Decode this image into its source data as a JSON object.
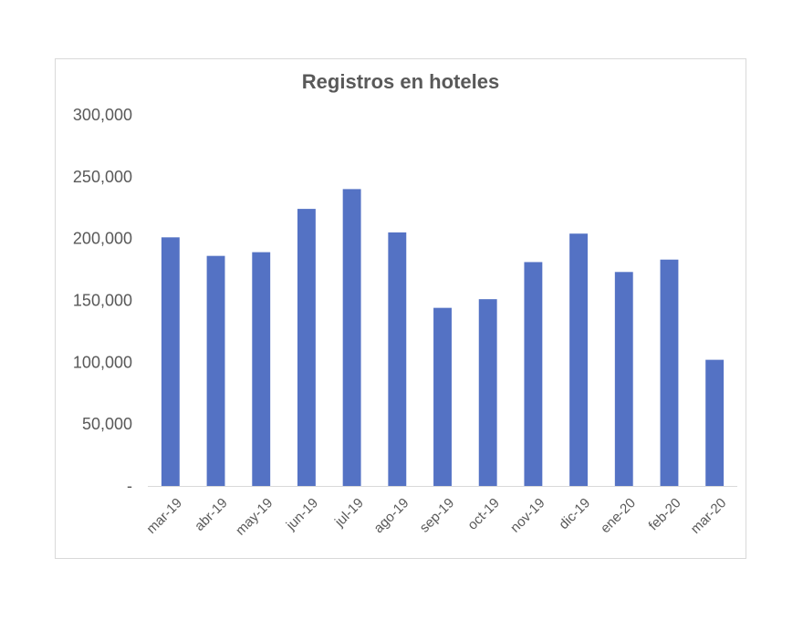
{
  "chart_data": {
    "type": "bar",
    "title": "Registros en hoteles",
    "xlabel": "",
    "ylabel": "",
    "categories": [
      "mar-19",
      "abr-19",
      "may-19",
      "jun-19",
      "jul-19",
      "ago-19",
      "sep-19",
      "oct-19",
      "nov-19",
      "dic-19",
      "ene-20",
      "feb-20",
      "mar-20"
    ],
    "values": [
      201000,
      186000,
      189000,
      224000,
      240000,
      205000,
      144000,
      151000,
      181000,
      204000,
      173000,
      183000,
      102000
    ],
    "ylim": [
      0,
      300000
    ],
    "yticks": [
      0,
      50000,
      100000,
      150000,
      200000,
      250000,
      300000
    ],
    "ytick_labels": [
      "-",
      "50,000",
      "100,000",
      "150,000",
      "200,000",
      "250,000",
      "300,000"
    ],
    "grid": false,
    "legend": "none",
    "bar_color": "#5472c4"
  }
}
